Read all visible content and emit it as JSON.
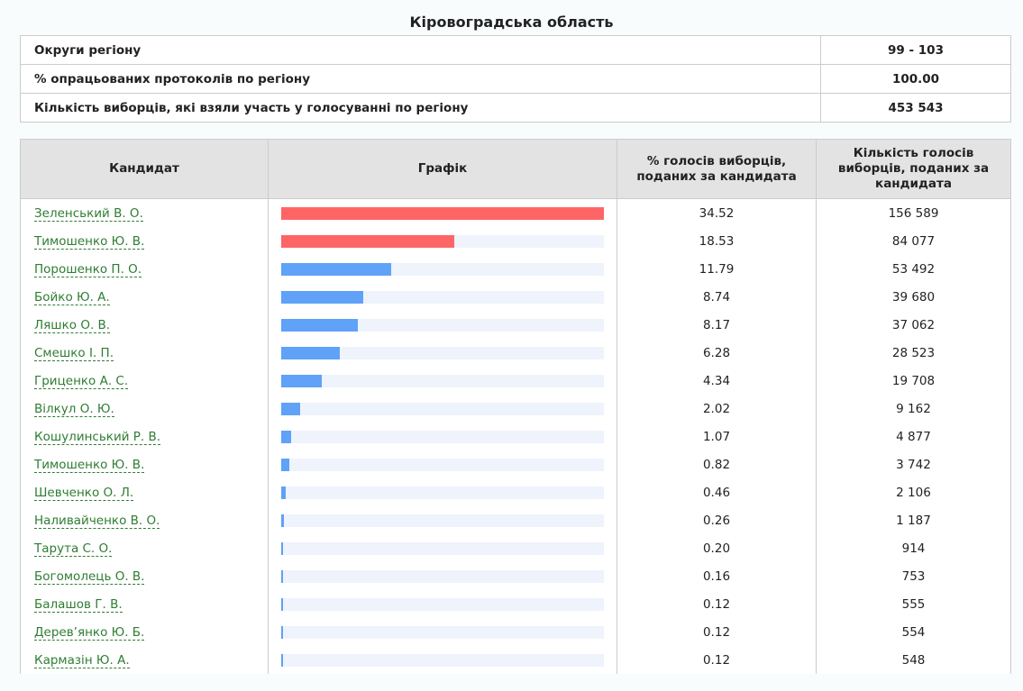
{
  "title": "Кіровоградська область",
  "summary": [
    {
      "label": "Округи регіону",
      "value": "99 - 103"
    },
    {
      "label": "% опрацьованих протоколів по регіону",
      "value": "100.00"
    },
    {
      "label": "Кількість виборців, які взяли участь у голосуванні по регіону",
      "value": "453 543"
    }
  ],
  "headers": {
    "candidate": "Кандидат",
    "chart": "Графік",
    "percent": "% голосів виборців, поданих за кандидата",
    "votes": "Кількість голосів виборців, поданих за кандидата"
  },
  "colors": {
    "leader": "#fe6565",
    "other": "#5fa2f7",
    "track": "#eef3fc",
    "link": "#2e7d32"
  },
  "candidates": [
    {
      "name": "Зеленський В. О.",
      "percent": "34.52",
      "votes": "156 589",
      "leader": true
    },
    {
      "name": "Тимошенко Ю. В.",
      "percent": "18.53",
      "votes": "84 077",
      "leader": true
    },
    {
      "name": "Порошенко П. О.",
      "percent": "11.79",
      "votes": "53 492"
    },
    {
      "name": "Бойко Ю. А.",
      "percent": "8.74",
      "votes": "39 680"
    },
    {
      "name": "Ляшко О. В.",
      "percent": "8.17",
      "votes": "37 062"
    },
    {
      "name": "Смешко І. П.",
      "percent": "6.28",
      "votes": "28 523"
    },
    {
      "name": "Гриценко А. С.",
      "percent": "4.34",
      "votes": "19 708"
    },
    {
      "name": "Вілкул О. Ю.",
      "percent": "2.02",
      "votes": "9 162"
    },
    {
      "name": "Кошулинський Р. В.",
      "percent": "1.07",
      "votes": "4 877"
    },
    {
      "name": "Тимошенко Ю. В.",
      "percent": "0.82",
      "votes": "3 742"
    },
    {
      "name": "Шевченко О. Л.",
      "percent": "0.46",
      "votes": "2 106"
    },
    {
      "name": "Наливайченко В. О.",
      "percent": "0.26",
      "votes": "1 187"
    },
    {
      "name": "Тарута С. О.",
      "percent": "0.20",
      "votes": "914"
    },
    {
      "name": "Богомолець О. В.",
      "percent": "0.16",
      "votes": "753"
    },
    {
      "name": "Балашов Г. В.",
      "percent": "0.12",
      "votes": "555"
    },
    {
      "name": "Дерев’янко Ю. Б.",
      "percent": "0.12",
      "votes": "554"
    },
    {
      "name": "Кармазін Ю. А.",
      "percent": "0.12",
      "votes": "548"
    }
  ]
}
